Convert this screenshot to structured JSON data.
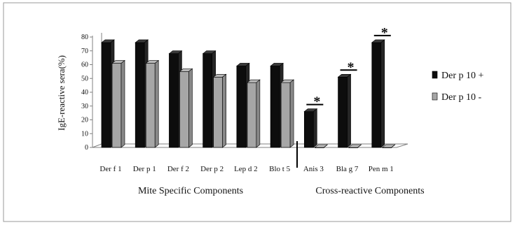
{
  "chart_data": {
    "type": "bar",
    "title": "",
    "xlabel": "",
    "ylabel": "IgE-reactive sera(%)",
    "ylim": [
      0,
      80
    ],
    "yticks": [
      0,
      10,
      20,
      30,
      40,
      50,
      60,
      70,
      80
    ],
    "grid": false,
    "legend_position": "right",
    "categories": [
      "Der f 1",
      "Der p 1",
      "Der f 2",
      "Der p 2",
      "Lep d 2",
      "Blo t 5",
      "Anis 3",
      "Bla g 7",
      "Pen m 1"
    ],
    "series": [
      {
        "name": "Der p 10 +",
        "color": "#0d0d0d",
        "values": [
          76,
          76,
          68,
          68,
          59,
          59,
          26,
          51,
          76
        ]
      },
      {
        "name": "Der p 10 -",
        "color": "#a6a6a6",
        "values": [
          61,
          61,
          55,
          51,
          47,
          47,
          0,
          0,
          0
        ]
      }
    ],
    "group_labels": [
      "Mite Specific Components",
      "Cross-reactive Components"
    ],
    "annotations": [
      "*",
      "*",
      "*"
    ]
  }
}
